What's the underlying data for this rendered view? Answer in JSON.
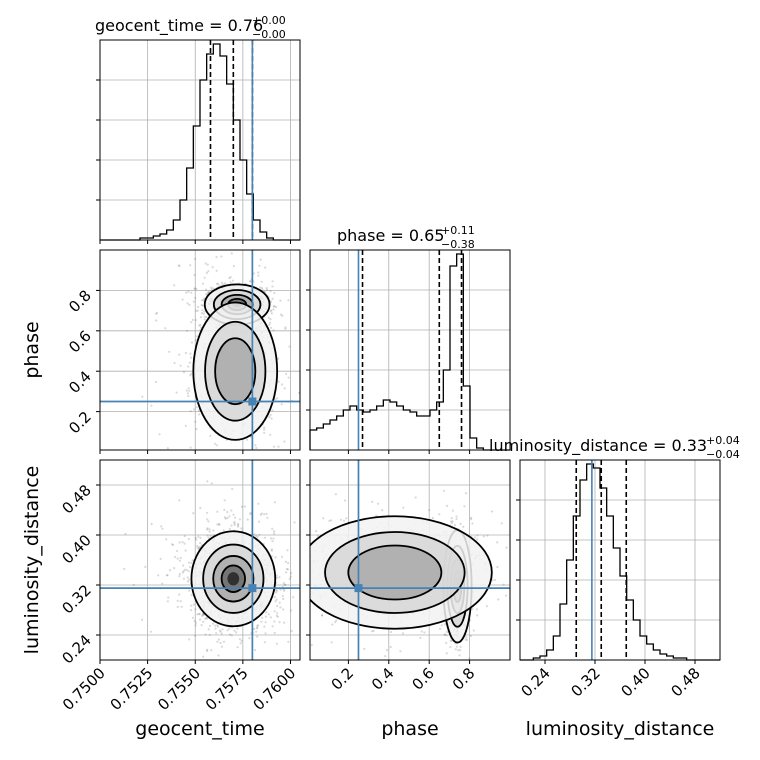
{
  "chart_data": {
    "type": "corner",
    "parameters": [
      {
        "key": "geocent_time",
        "label": "geocent_time",
        "range": [
          0.75,
          0.7605
        ],
        "ticks": [
          "0.7500",
          "0.7525",
          "0.7550",
          "0.7575",
          "0.7600"
        ],
        "tick_values": [
          0.75,
          0.7525,
          0.755,
          0.7575,
          0.76
        ],
        "truth": 0.758,
        "quantiles": [
          0.7558,
          0.757,
          0.758
        ],
        "title_main": "geocent_time = 0.76",
        "title_sup": "+0.00",
        "title_sub": "−0.00"
      },
      {
        "key": "phase",
        "label": "phase",
        "range": [
          0.01,
          1.0
        ],
        "ticks": [
          "0.2",
          "0.4",
          "0.6",
          "0.8"
        ],
        "tick_values": [
          0.2,
          0.4,
          0.6,
          0.8
        ],
        "truth": 0.25,
        "quantiles": [
          0.27,
          0.65,
          0.76
        ],
        "title_main": "phase = 0.65",
        "title_sup": "+0.11",
        "title_sub": "−0.38"
      },
      {
        "key": "luminosity_distance",
        "label": "luminosity_distance",
        "range": [
          0.2,
          0.52
        ],
        "ticks": [
          "0.24",
          "0.32",
          "0.40",
          "0.48"
        ],
        "tick_values": [
          0.24,
          0.32,
          0.4,
          0.48
        ],
        "truth": 0.315,
        "quantiles": [
          0.29,
          0.33,
          0.37
        ],
        "title_main": "luminosity_distance = 0.33",
        "title_sup": "+0.04",
        "title_sub": "−0.04"
      }
    ],
    "histograms": {
      "geocent_time": [
        0,
        0,
        0,
        0,
        0,
        0,
        0.01,
        0.01,
        0.02,
        0.03,
        0.05,
        0.1,
        0.2,
        0.36,
        0.57,
        0.8,
        0.93,
        0.98,
        0.92,
        0.78,
        0.6,
        0.4,
        0.23,
        0.1,
        0.04,
        0.01,
        0,
        0,
        0,
        0
      ],
      "phase": [
        0.1,
        0.11,
        0.13,
        0.15,
        0.17,
        0.2,
        0.22,
        0.2,
        0.19,
        0.2,
        0.22,
        0.25,
        0.24,
        0.22,
        0.2,
        0.19,
        0.17,
        0.17,
        0.2,
        0.24,
        0.4,
        0.92,
        0.98,
        0.32,
        0.06,
        0.01,
        0,
        0,
        0,
        0
      ],
      "luminosity_distance": [
        0,
        0,
        0.01,
        0.02,
        0.05,
        0.12,
        0.28,
        0.5,
        0.72,
        0.9,
        0.98,
        0.96,
        0.86,
        0.72,
        0.56,
        0.42,
        0.3,
        0.2,
        0.12,
        0.08,
        0.05,
        0.03,
        0.02,
        0.01,
        0.01,
        0,
        0,
        0,
        0,
        0
      ]
    },
    "truth_color": "#4682b4",
    "hist_color": "#000000",
    "grid": true
  }
}
